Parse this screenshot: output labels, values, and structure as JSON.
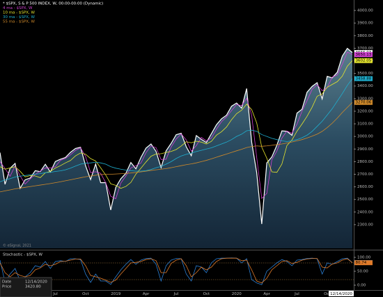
{
  "chart_data": [
    {
      "type": "line",
      "categories": [
        null,
        null,
        null,
        null,
        null,
        null,
        null,
        null,
        null,
        null,
        null,
        "Jul",
        null,
        null,
        null,
        null,
        null,
        "Oct",
        null,
        null,
        null,
        null,
        null,
        "2019",
        null,
        null,
        null,
        null,
        null,
        "Apr",
        null,
        null,
        null,
        null,
        null,
        "Jul",
        null,
        null,
        null,
        null,
        null,
        "Oct",
        null,
        null,
        null,
        null,
        null,
        "2020",
        null,
        null,
        null,
        null,
        null,
        "Apr",
        null,
        null,
        null,
        null,
        null,
        "Jul",
        null,
        null,
        null,
        null,
        null,
        "Oct",
        null,
        null,
        null,
        null,
        "12/14/2020"
      ],
      "series": [
        {
          "name": "* $SPX, S & P 500 INDEX, W, 00:00-00:00 (Dynamic)",
          "color": "#ffffff",
          "area": true,
          "values": [
            2872,
            2620,
            2747,
            2786,
            2588,
            2656,
            2670,
            2728,
            2721,
            2779,
            2718,
            2801,
            2819,
            2833,
            2874,
            2905,
            2914,
            2767,
            2658,
            2781,
            2633,
            2633,
            2416,
            2596,
            2664,
            2707,
            2793,
            2743,
            2834,
            2907,
            2940,
            2881,
            2752,
            2886,
            2945,
            3014,
            3025,
            2918,
            2847,
            3007,
            2977,
            2952,
            3022,
            3093,
            3140,
            3169,
            3240,
            3265,
            3225,
            3380,
            2954,
            2711,
            2305,
            2790,
            2837,
            2930,
            3044,
            3041,
            3009,
            3185,
            3216,
            3351,
            3397,
            3427,
            3298,
            3477,
            3465,
            3510,
            3638,
            3699,
            3666.03
          ]
        },
        {
          "name": "4 ma - $SPX, W",
          "color": "#d040d0",
          "values": [
            2800,
            2746,
            2684,
            2767,
            2687,
            2622,
            2663,
            2699,
            2725,
            2750,
            2749,
            2760,
            2810,
            2826,
            2854,
            2890,
            2910,
            2841,
            2713,
            2720,
            2707,
            2633,
            2525,
            2506,
            2630,
            2686,
            2750,
            2768,
            2789,
            2871,
            2924,
            2911,
            2817,
            2819,
            2916,
            2980,
            3020,
            2972,
            2883,
            2927,
            2992,
            2965,
            2987,
            3058,
            3117,
            3155,
            3205,
            3253,
            3245,
            3303,
            3167,
            2833,
            2508,
            2548,
            2814,
            2884,
            2987,
            3043,
            3025,
            3097,
            3201,
            3284,
            3374,
            3412,
            3363,
            3388,
            3471,
            3488,
            3574,
            3669,
            3650.13
          ]
        },
        {
          "name": "10 ma - $SPX, W",
          "color": "#e6e62e",
          "values": [
            2760,
            2740,
            2750,
            2760,
            2723,
            2679,
            2689,
            2686,
            2673,
            2711,
            2723,
            2749,
            2768,
            2790,
            2809,
            2846,
            2869,
            2859,
            2824,
            2805,
            2751,
            2694,
            2624,
            2612,
            2588,
            2603,
            2635,
            2701,
            2748,
            2797,
            2843,
            2861,
            2863,
            2873,
            2881,
            2896,
            2924,
            2958,
            2950,
            2962,
            2955,
            2940,
            2961,
            3010,
            3037,
            3075,
            3133,
            3181,
            3208,
            3256,
            3213,
            3107,
            2915,
            2828,
            2719,
            2715,
            2781,
            2928,
            2972,
            3042,
            3099,
            3160,
            3232,
            3319,
            3338,
            3390,
            3413,
            3435,
            3478,
            3558,
            3602.05
          ]
        },
        {
          "name": "30 ma - $SPX, W",
          "color": "#1fb0d0",
          "values": [
            2640,
            2655,
            2665,
            2678,
            2685,
            2690,
            2695,
            2700,
            2705,
            2712,
            2715,
            2722,
            2727,
            2735,
            2748,
            2765,
            2780,
            2788,
            2790,
            2795,
            2790,
            2780,
            2760,
            2748,
            2740,
            2733,
            2728,
            2725,
            2725,
            2728,
            2738,
            2752,
            2762,
            2780,
            2800,
            2825,
            2845,
            2858,
            2868,
            2880,
            2890,
            2900,
            2910,
            2925,
            2940,
            2955,
            2975,
            3000,
            3018,
            3045,
            3050,
            3040,
            3015,
            3000,
            2985,
            2975,
            2965,
            2960,
            2965,
            2975,
            2990,
            3010,
            3040,
            3080,
            3120,
            3170,
            3220,
            3280,
            3340,
            3405,
            3458.88
          ]
        },
        {
          "name": "55 ma - $SPX, W",
          "color": "#d08a2a",
          "values": [
            2560,
            2568,
            2576,
            2584,
            2590,
            2596,
            2602,
            2608,
            2614,
            2620,
            2626,
            2633,
            2640,
            2648,
            2656,
            2664,
            2672,
            2680,
            2686,
            2692,
            2697,
            2700,
            2700,
            2702,
            2704,
            2706,
            2710,
            2714,
            2719,
            2724,
            2730,
            2735,
            2740,
            2745,
            2752,
            2760,
            2768,
            2776,
            2782,
            2790,
            2800,
            2810,
            2822,
            2835,
            2848,
            2860,
            2873,
            2886,
            2898,
            2912,
            2920,
            2925,
            2922,
            2925,
            2930,
            2935,
            2940,
            2948,
            2956,
            2965,
            2975,
            2988,
            3002,
            3018,
            3040,
            3070,
            3105,
            3145,
            3190,
            3230,
            3270.06
          ]
        }
      ],
      "ylim": [
        2112,
        4083
      ],
      "yticks": [
        {
          "value": 2300,
          "label": "2300.00"
        },
        {
          "value": 2400,
          "label": "2400.00"
        },
        {
          "value": 2500,
          "label": "2500.00"
        },
        {
          "value": 2600,
          "label": "2600.00"
        },
        {
          "value": 2700,
          "label": "2700.00"
        },
        {
          "value": 2800,
          "label": "2800.00"
        },
        {
          "value": 2900,
          "label": "2900.00"
        },
        {
          "value": 3000,
          "label": "3000.00"
        },
        {
          "value": 3100,
          "label": "3100.00"
        },
        {
          "value": 3200,
          "label": "3200.00"
        },
        {
          "value": 3300,
          "label": "3300.00"
        },
        {
          "value": 3400,
          "label": "3400.00"
        },
        {
          "value": 3500,
          "label": "3500.00"
        },
        {
          "value": 3600,
          "label": "3600.00"
        },
        {
          "value": 3700,
          "label": "3700.00"
        },
        {
          "value": 3800,
          "label": "3800.00"
        },
        {
          "value": 3900,
          "label": "3900.00"
        },
        {
          "value": 4000,
          "label": "4000.00"
        }
      ],
      "credit": "© eSignal, 2021"
    },
    {
      "type": "line",
      "title": "Stochastic - $SPX, W",
      "series": [
        {
          "color": "#2a7fd4",
          "values": [
            90,
            10,
            40,
            60,
            15,
            30,
            45,
            70,
            65,
            85,
            60,
            85,
            88,
            85,
            95,
            95,
            92,
            40,
            10,
            40,
            15,
            15,
            3,
            30,
            55,
            75,
            92,
            75,
            90,
            96,
            97,
            75,
            15,
            70,
            90,
            96,
            95,
            40,
            15,
            70,
            65,
            45,
            80,
            95,
            97,
            97,
            98,
            97,
            80,
            95,
            20,
            8,
            2,
            50,
            65,
            80,
            92,
            85,
            70,
            90,
            92,
            96,
            97,
            95,
            40,
            80,
            75,
            85,
            95,
            97,
            81.24
          ]
        },
        {
          "color": "#e07b2a",
          "values": [
            80,
            45,
            30,
            45,
            35,
            30,
            35,
            55,
            62,
            75,
            70,
            75,
            85,
            86,
            90,
            94,
            94,
            70,
            35,
            30,
            25,
            18,
            10,
            18,
            40,
            60,
            80,
            82,
            85,
            92,
            95,
            88,
            45,
            45,
            78,
            90,
            95,
            70,
            30,
            45,
            65,
            55,
            65,
            85,
            95,
            97,
            97,
            97,
            88,
            90,
            55,
            15,
            8,
            25,
            55,
            70,
            85,
            88,
            78,
            82,
            90,
            94,
            96,
            96,
            65,
            62,
            76,
            80,
            90,
            95,
            80.74
          ]
        }
      ],
      "levels": [
        20,
        80
      ],
      "ylim": [
        -15,
        120
      ],
      "yticks": [
        {
          "value": 0,
          "label": "0.00"
        },
        {
          "value": 50,
          "label": "50.00"
        },
        {
          "value": 100,
          "label": "100.00"
        }
      ]
    }
  ],
  "data_window": {
    "rows": [
      [
        "Date",
        "12/14/2020"
      ],
      [
        "Price",
        "3420.80"
      ]
    ]
  }
}
